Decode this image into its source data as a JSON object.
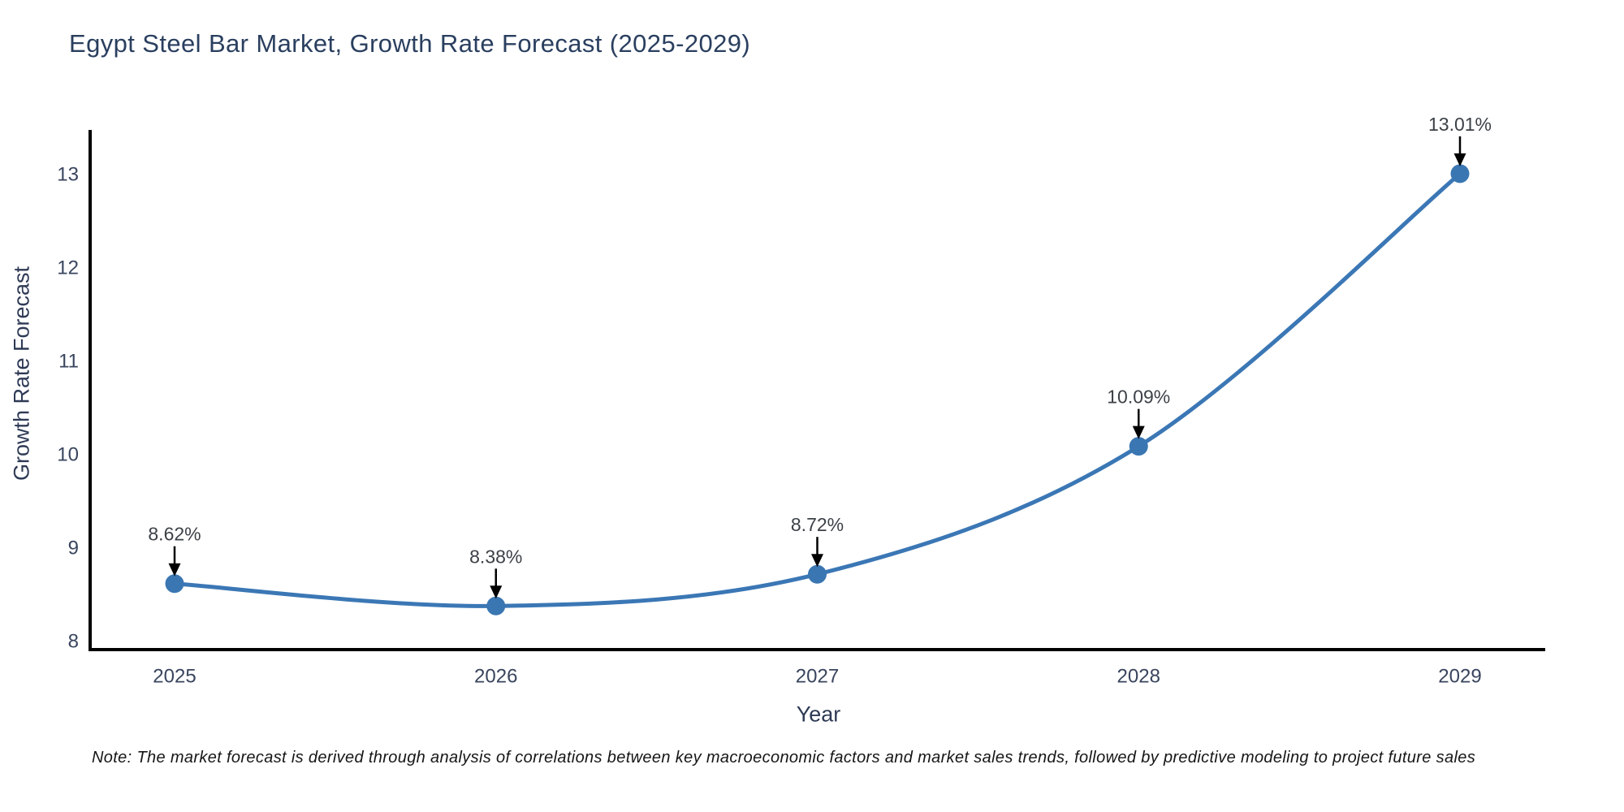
{
  "chart_data": {
    "type": "line",
    "title": "Egypt Steel Bar Market, Growth Rate Forecast (2025-2029)",
    "xlabel": "Year",
    "ylabel": "Growth Rate Forecast",
    "categories": [
      "2025",
      "2026",
      "2027",
      "2028",
      "2029"
    ],
    "series": [
      {
        "name": "Growth Rate Forecast",
        "values": [
          8.62,
          8.38,
          8.72,
          10.09,
          13.01
        ],
        "point_labels": [
          "8.62%",
          "8.38%",
          "8.72%",
          "10.09%",
          "13.01%"
        ]
      }
    ],
    "yticks": [
      8,
      9,
      10,
      11,
      12,
      13
    ],
    "ylim": [
      7.9,
      13.5
    ],
    "grid": false,
    "legend_position": "none",
    "note": "Note: The market forecast is derived through analysis of correlations between key macroeconomic factors and market sales trends, followed by predictive modeling to project future sales",
    "colors": {
      "line": "#3b77b5",
      "marker": "#3a76b2",
      "arrow": "#000000",
      "spine": "#000000",
      "title_text": "#2a3f5f",
      "axis_title_text": "#2e3a55",
      "tick_text": "#39455e",
      "annotation_text": "#3c4147",
      "note_text": "#161616",
      "background": "#ffffff"
    }
  }
}
